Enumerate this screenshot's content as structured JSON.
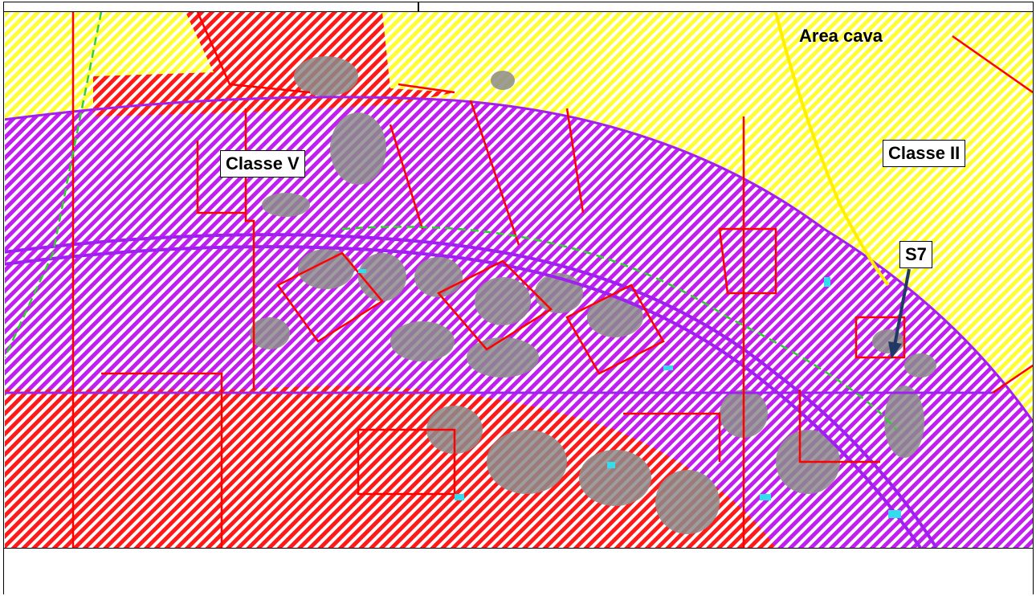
{
  "labels": {
    "area_cava": "Area cava",
    "classe_v": "Classe V",
    "classe_ii": "Classe II",
    "s7": "S7"
  },
  "colors": {
    "class_ii_yellow": "#ffff33",
    "class_v_purple": "#c01ff0",
    "class_red": "#ff0000",
    "building_gray": "#8c8c8c",
    "road_purple": "#a020f0",
    "arrow_navy": "#1f3864",
    "water_cyan": "#33ddee",
    "green_line": "#33cc33"
  },
  "icons": {
    "arrow": "arrow-down-icon"
  }
}
